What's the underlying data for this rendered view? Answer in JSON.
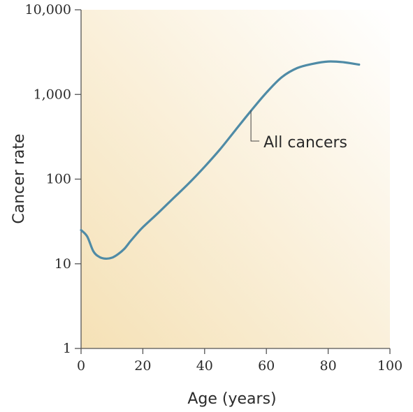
{
  "chart_data": {
    "type": "line",
    "title": "",
    "xlabel": "Age (years)",
    "ylabel": "Cancer rate",
    "xlim": [
      0,
      100
    ],
    "ylim": [
      1,
      10000
    ],
    "yscale": "log",
    "grid": false,
    "x_ticks": [
      0,
      20,
      40,
      60,
      80,
      100
    ],
    "x_tick_labels": [
      "0",
      "20",
      "40",
      "60",
      "80",
      "100"
    ],
    "y_ticks": [
      1,
      10,
      100,
      1000,
      10000
    ],
    "y_tick_labels": [
      "1",
      "10",
      "100",
      "1,000",
      "10,000"
    ],
    "background_colors": [
      "#f5e1b6",
      "#ffffff"
    ],
    "series": [
      {
        "color": "#4f8ba6",
        "x": [
          0,
          2,
          4,
          6,
          8,
          10,
          12,
          14,
          16,
          18,
          20,
          25,
          30,
          35,
          40,
          45,
          50,
          55,
          60,
          65,
          70,
          75,
          80,
          85,
          90
        ],
        "y": [
          25,
          21,
          14,
          12,
          11.5,
          11.8,
          13,
          15,
          18.5,
          22.5,
          27,
          40,
          60,
          90,
          140,
          225,
          380,
          640,
          1050,
          1600,
          2050,
          2300,
          2450,
          2400,
          2250
        ]
      }
    ],
    "annotations": [
      {
        "text": "All cancers",
        "x": 55,
        "y": 700
      }
    ]
  }
}
